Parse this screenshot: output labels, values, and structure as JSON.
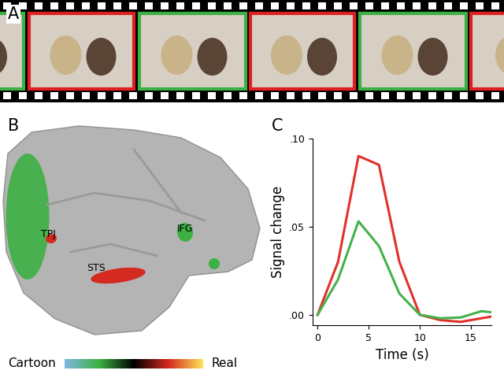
{
  "chart_data": {
    "type": "line",
    "xlabel": "Time (s)",
    "ylabel": "Signal change",
    "x": [
      0,
      2,
      4,
      6,
      8,
      10,
      12,
      14,
      16,
      17
    ],
    "series": [
      {
        "color": "#e0312b",
        "values": [
          0,
          0.03,
          0.09,
          0.085,
          0.03,
          0.0,
          -0.003,
          -0.004,
          -0.002,
          -0.001
        ]
      },
      {
        "color": "#46b14b",
        "values": [
          0,
          0.02,
          0.053,
          0.039,
          0.012,
          0.0,
          -0.002,
          -0.0015,
          0.002,
          0.0015
        ]
      }
    ],
    "xlim": [
      -0.5,
      17
    ],
    "ylim": [
      -0.006,
      0.1
    ],
    "xticks": [
      0,
      5,
      10,
      15
    ],
    "yticks": [
      {
        "value": 0,
        "label": ".00"
      },
      {
        "value": 0.05,
        "label": ".05"
      },
      {
        "value": 0.1,
        "label": ".10"
      }
    ],
    "grid": false
  },
  "panels": {
    "A": {
      "label": "A",
      "frame_colors": [
        "#3cb043",
        "#e02020",
        "#3cb043",
        "#e02020",
        "#3cb043",
        "#e02020"
      ]
    },
    "B": {
      "label": "B",
      "regions": [
        {
          "label": "TPJ",
          "color": "#d42a1f"
        },
        {
          "label": "STS",
          "color": "#d42a1f"
        },
        {
          "label": "IFG",
          "color": "#3cb043"
        }
      ],
      "colorbar": {
        "low": "Cartoon",
        "high": "Real"
      }
    },
    "C": {
      "label": "C"
    }
  }
}
